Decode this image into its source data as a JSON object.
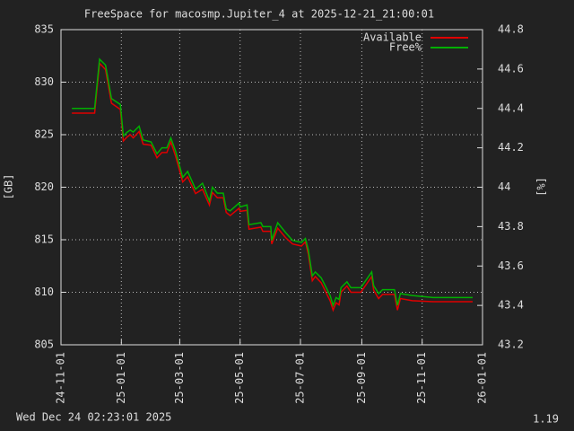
{
  "chart_data": {
    "type": "line",
    "title": "FreeSpace for macosmp.Jupiter_4  at 2025-12-21_21:00:01",
    "ylabel": "[GB]",
    "y2label": "[%]",
    "footer_left": "Wed Dec 24 02:23:01 2025",
    "footer_right": "1.19",
    "legend": "top-right",
    "grid": true,
    "xlim": [
      "2024-11-01",
      "2026-01-01"
    ],
    "xticks": [
      {
        "value": "2024-11-01",
        "label": "24-11-01"
      },
      {
        "value": "2025-01-01",
        "label": "25-01-01"
      },
      {
        "value": "2025-03-01",
        "label": "25-03-01"
      },
      {
        "value": "2025-05-01",
        "label": "25-05-01"
      },
      {
        "value": "2025-07-01",
        "label": "25-07-01"
      },
      {
        "value": "2025-09-01",
        "label": "25-09-01"
      },
      {
        "value": "2025-11-01",
        "label": "25-11-01"
      },
      {
        "value": "2026-01-01",
        "label": "26-01-01"
      }
    ],
    "ylim": [
      805,
      835
    ],
    "yticks": [
      805,
      810,
      815,
      820,
      825,
      830,
      835
    ],
    "y2lim": [
      43.2,
      44.8
    ],
    "y2ticks": [
      43.2,
      43.4,
      43.6,
      43.8,
      44,
      44.2,
      44.4,
      44.6,
      44.8
    ],
    "x": [
      "2024-11-12",
      "2024-12-05",
      "2024-12-10",
      "2024-12-16",
      "2024-12-22",
      "2024-12-31",
      "2025-01-03",
      "2025-01-07",
      "2025-01-10",
      "2025-01-13",
      "2025-01-19",
      "2025-01-23",
      "2025-01-31",
      "2025-02-06",
      "2025-02-11",
      "2025-02-16",
      "2025-02-20",
      "2025-02-25",
      "2025-03-04",
      "2025-03-09",
      "2025-03-17",
      "2025-03-24",
      "2025-03-31",
      "2025-04-03",
      "2025-04-08",
      "2025-04-14",
      "2025-04-17",
      "2025-04-21",
      "2025-04-30",
      "2025-05-01",
      "2025-05-08",
      "2025-05-10",
      "2025-05-22",
      "2025-05-24",
      "2025-06-01",
      "2025-06-02",
      "2025-06-08",
      "2025-06-16",
      "2025-06-23",
      "2025-07-02",
      "2025-07-06",
      "2025-07-09",
      "2025-07-13",
      "2025-07-16",
      "2025-07-22",
      "2025-07-31",
      "2025-08-03",
      "2025-08-06",
      "2025-08-09",
      "2025-08-11",
      "2025-08-17",
      "2025-08-21",
      "2025-08-31",
      "2025-09-11",
      "2025-09-13",
      "2025-09-18",
      "2025-09-22",
      "2025-10-04",
      "2025-10-07",
      "2025-10-10",
      "2025-10-22",
      "2025-11-12",
      "2025-12-22"
    ],
    "series": [
      {
        "name": "Available",
        "color": "#e00000",
        "values": [
          827.05,
          827.05,
          831.8,
          831.2,
          828.0,
          827.4,
          824.4,
          824.8,
          825.0,
          824.7,
          825.3,
          824.1,
          824.0,
          822.8,
          823.3,
          823.3,
          824.3,
          822.9,
          820.5,
          821.0,
          819.4,
          819.8,
          818.3,
          819.5,
          819.0,
          819.0,
          817.6,
          817.3,
          818.0,
          817.7,
          817.8,
          816.0,
          816.2,
          815.8,
          815.8,
          814.6,
          816.1,
          815.2,
          814.6,
          814.4,
          814.8,
          813.6,
          811.1,
          811.5,
          810.9,
          809.2,
          808.3,
          809.0,
          808.8,
          810.0,
          810.6,
          810.0,
          810.0,
          811.5,
          810.2,
          809.4,
          809.8,
          809.8,
          808.3,
          809.4,
          809.2,
          809.1,
          809.1
        ]
      },
      {
        "name": "Free%",
        "color": "#00b000",
        "axis": "y2",
        "values": [
          44.4,
          44.4,
          44.65,
          44.62,
          44.45,
          44.42,
          44.26,
          44.28,
          44.29,
          44.28,
          44.31,
          44.24,
          44.23,
          44.17,
          44.2,
          44.2,
          44.25,
          44.18,
          44.05,
          44.08,
          43.99,
          44.02,
          43.93,
          44.0,
          43.97,
          43.97,
          43.89,
          43.88,
          43.92,
          43.9,
          43.91,
          43.81,
          43.82,
          43.8,
          43.8,
          43.73,
          43.82,
          43.77,
          43.73,
          43.72,
          43.74,
          43.68,
          43.55,
          43.57,
          43.54,
          43.45,
          43.4,
          43.44,
          43.43,
          43.49,
          43.52,
          43.49,
          43.49,
          43.57,
          43.5,
          43.46,
          43.48,
          43.48,
          43.4,
          43.46,
          43.45,
          43.44,
          43.44
        ]
      }
    ]
  }
}
